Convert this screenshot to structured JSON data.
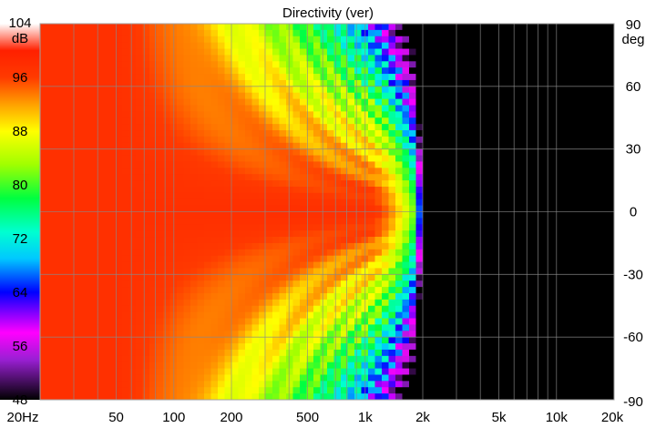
{
  "chart_data": {
    "type": "heatmap",
    "title": "Directivity (ver)",
    "xlabel": "",
    "ylabel": "",
    "x_scale": "log",
    "xlim": [
      20,
      20000
    ],
    "ylim": [
      -90,
      90
    ],
    "x_ticks": [
      {
        "value": 20,
        "label": "20Hz"
      },
      {
        "value": 50,
        "label": "50"
      },
      {
        "value": 100,
        "label": "100"
      },
      {
        "value": 200,
        "label": "200"
      },
      {
        "value": 500,
        "label": "500"
      },
      {
        "value": 1000,
        "label": "1k"
      },
      {
        "value": 2000,
        "label": "2k"
      },
      {
        "value": 5000,
        "label": "5k"
      },
      {
        "value": 10000,
        "label": "10k"
      },
      {
        "value": 20000,
        "label": "20k"
      }
    ],
    "y_ticks": [
      90,
      60,
      30,
      0,
      -30,
      -60,
      -90
    ],
    "y_unit": "deg",
    "colorbar": {
      "unit": "dB",
      "range": [
        48,
        104
      ],
      "ticks": [
        104,
        96,
        88,
        80,
        72,
        64,
        56,
        48
      ]
    },
    "colormap": [
      {
        "v": 48,
        "color": "#000000"
      },
      {
        "v": 54,
        "color": "#9a1fd4"
      },
      {
        "v": 58,
        "color": "#ff00ff"
      },
      {
        "v": 64,
        "color": "#0000ff"
      },
      {
        "v": 69,
        "color": "#00c8ff"
      },
      {
        "v": 73,
        "color": "#00ffd0"
      },
      {
        "v": 78,
        "color": "#00ff40"
      },
      {
        "v": 83,
        "color": "#a0ff00"
      },
      {
        "v": 88,
        "color": "#ffff00"
      },
      {
        "v": 92,
        "color": "#ffa000"
      },
      {
        "v": 96,
        "color": "#ff3a00"
      },
      {
        "v": 100,
        "color": "#ff2000"
      },
      {
        "v": 104,
        "color": "#ffffff"
      }
    ],
    "grid": true,
    "contours": true
  }
}
